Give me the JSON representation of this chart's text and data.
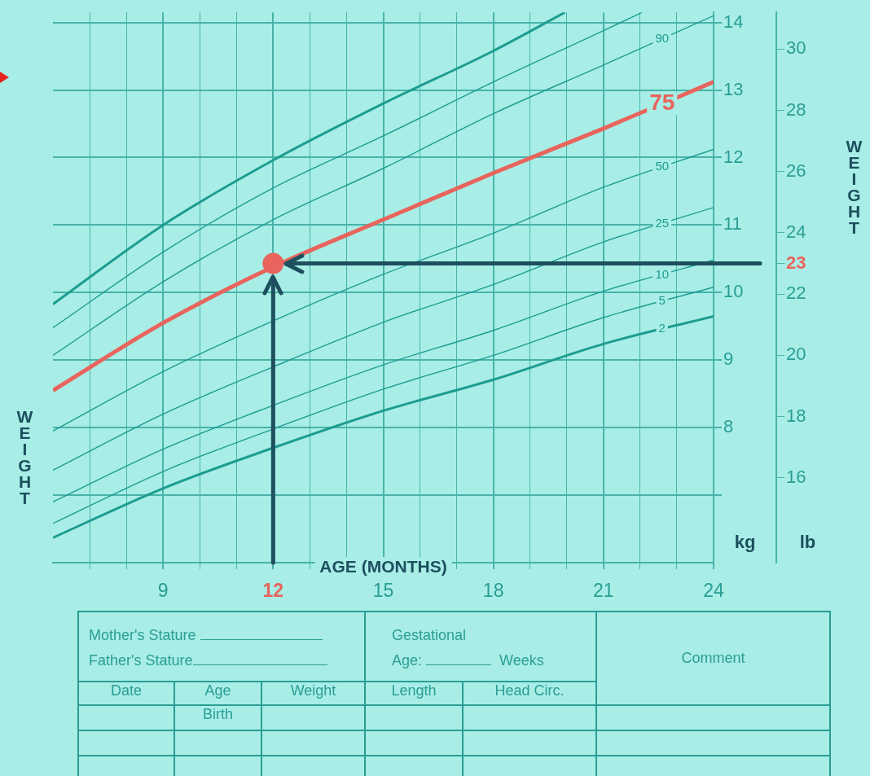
{
  "chart_data": {
    "type": "line",
    "xlabel": "AGE (MONTHS)",
    "ylabel": "WEIGHT",
    "y2label": "WEIGHT",
    "xlim": [
      6,
      24
    ],
    "xticks": [
      {
        "value": 7,
        "label": null
      },
      {
        "value": 8,
        "label": null
      },
      9,
      {
        "value": 10,
        "label": null
      },
      {
        "value": 11,
        "label": null
      },
      12,
      {
        "value": 13,
        "label": null
      },
      {
        "value": 14,
        "label": null
      },
      15,
      {
        "value": 16,
        "label": null
      },
      {
        "value": 17,
        "label": null
      },
      18,
      {
        "value": 19,
        "label": null
      },
      {
        "value": 20,
        "label": null
      },
      21,
      {
        "value": 22,
        "label": null
      },
      {
        "value": 23,
        "label": null
      },
      24
    ],
    "ylim": [
      6,
      14.15
    ],
    "yticks": [
      {
        "value": 7,
        "label": null
      },
      8,
      9,
      10,
      11,
      12,
      13,
      14
    ],
    "y2lim": [
      13.23,
      31.2
    ],
    "y2ticks": [
      16,
      18,
      20,
      22,
      23,
      24,
      26,
      28,
      30
    ],
    "ref_lines": [
      {
        "axis": "x",
        "value": 12,
        "color": "#1d4f5f"
      },
      {
        "axis": "y2",
        "value": 23,
        "color": "#1d4f5f"
      }
    ],
    "grid": true,
    "legend": false,
    "line_style": "solid",
    "series": [
      {
        "color": "#1d9c90",
        "x": [
          6,
          9,
          12,
          15,
          18,
          19.95
        ],
        "values": [
          9.83,
          11.0,
          11.96,
          12.8,
          13.58,
          14.15
        ]
      },
      {
        "color": "#1d9c90",
        "x": [
          6,
          9,
          12,
          15,
          18,
          21,
          22.05
        ],
        "values": [
          9.48,
          10.6,
          11.55,
          12.32,
          13.12,
          13.88,
          14.15
        ]
      },
      {
        "name": "90",
        "color": "#1d9c90",
        "x": [
          6,
          9,
          12,
          15,
          18,
          21,
          24
        ],
        "values": [
          9.07,
          10.16,
          11.08,
          11.84,
          12.65,
          13.37,
          14.1
        ]
      },
      {
        "name": "75",
        "color": "#e8645c",
        "x": [
          6,
          9,
          12,
          15,
          18,
          21,
          24
        ],
        "values": [
          8.55,
          9.55,
          10.38,
          11.08,
          11.77,
          12.43,
          13.12
        ]
      },
      {
        "name": "50",
        "color": "#1d9c90",
        "x": [
          6,
          9,
          12,
          15,
          18,
          21,
          24
        ],
        "values": [
          7.95,
          8.83,
          9.58,
          10.27,
          10.88,
          11.56,
          12.12
        ]
      },
      {
        "name": "25",
        "color": "#1d9c90",
        "x": [
          6,
          9,
          12,
          15,
          18,
          21,
          24
        ],
        "values": [
          7.37,
          8.2,
          8.9,
          9.56,
          10.12,
          10.75,
          11.26
        ]
      },
      {
        "name": "10",
        "color": "#1d9c90",
        "x": [
          6,
          9,
          12,
          15,
          18,
          21,
          24
        ],
        "values": [
          6.9,
          7.68,
          8.33,
          8.93,
          9.44,
          10.02,
          10.48
        ]
      },
      {
        "name": "5",
        "color": "#1d9c90",
        "x": [
          6,
          9,
          12,
          15,
          18,
          21,
          24
        ],
        "values": [
          6.58,
          7.35,
          7.98,
          8.57,
          9.07,
          9.63,
          10.08
        ]
      },
      {
        "name": "2",
        "color": "#1d9c90",
        "x": [
          6,
          9,
          12,
          15,
          18,
          21,
          24
        ],
        "values": [
          6.37,
          7.1,
          7.7,
          8.25,
          8.71,
          9.24,
          9.65
        ]
      },
      {
        "type": "scatter",
        "axis": "y2",
        "marker": "circle",
        "color": "#e8645c",
        "x": [
          12
        ],
        "values": [
          23
        ]
      }
    ],
    "annotations": [
      "kg",
      "lb",
      "Mother's Stature",
      "Father's Stature",
      "Gestational",
      "Age:",
      "Weeks",
      "Comment",
      "Date",
      "Age",
      "Weight",
      "Length",
      "Head  Circ.",
      "Birth"
    ]
  }
}
